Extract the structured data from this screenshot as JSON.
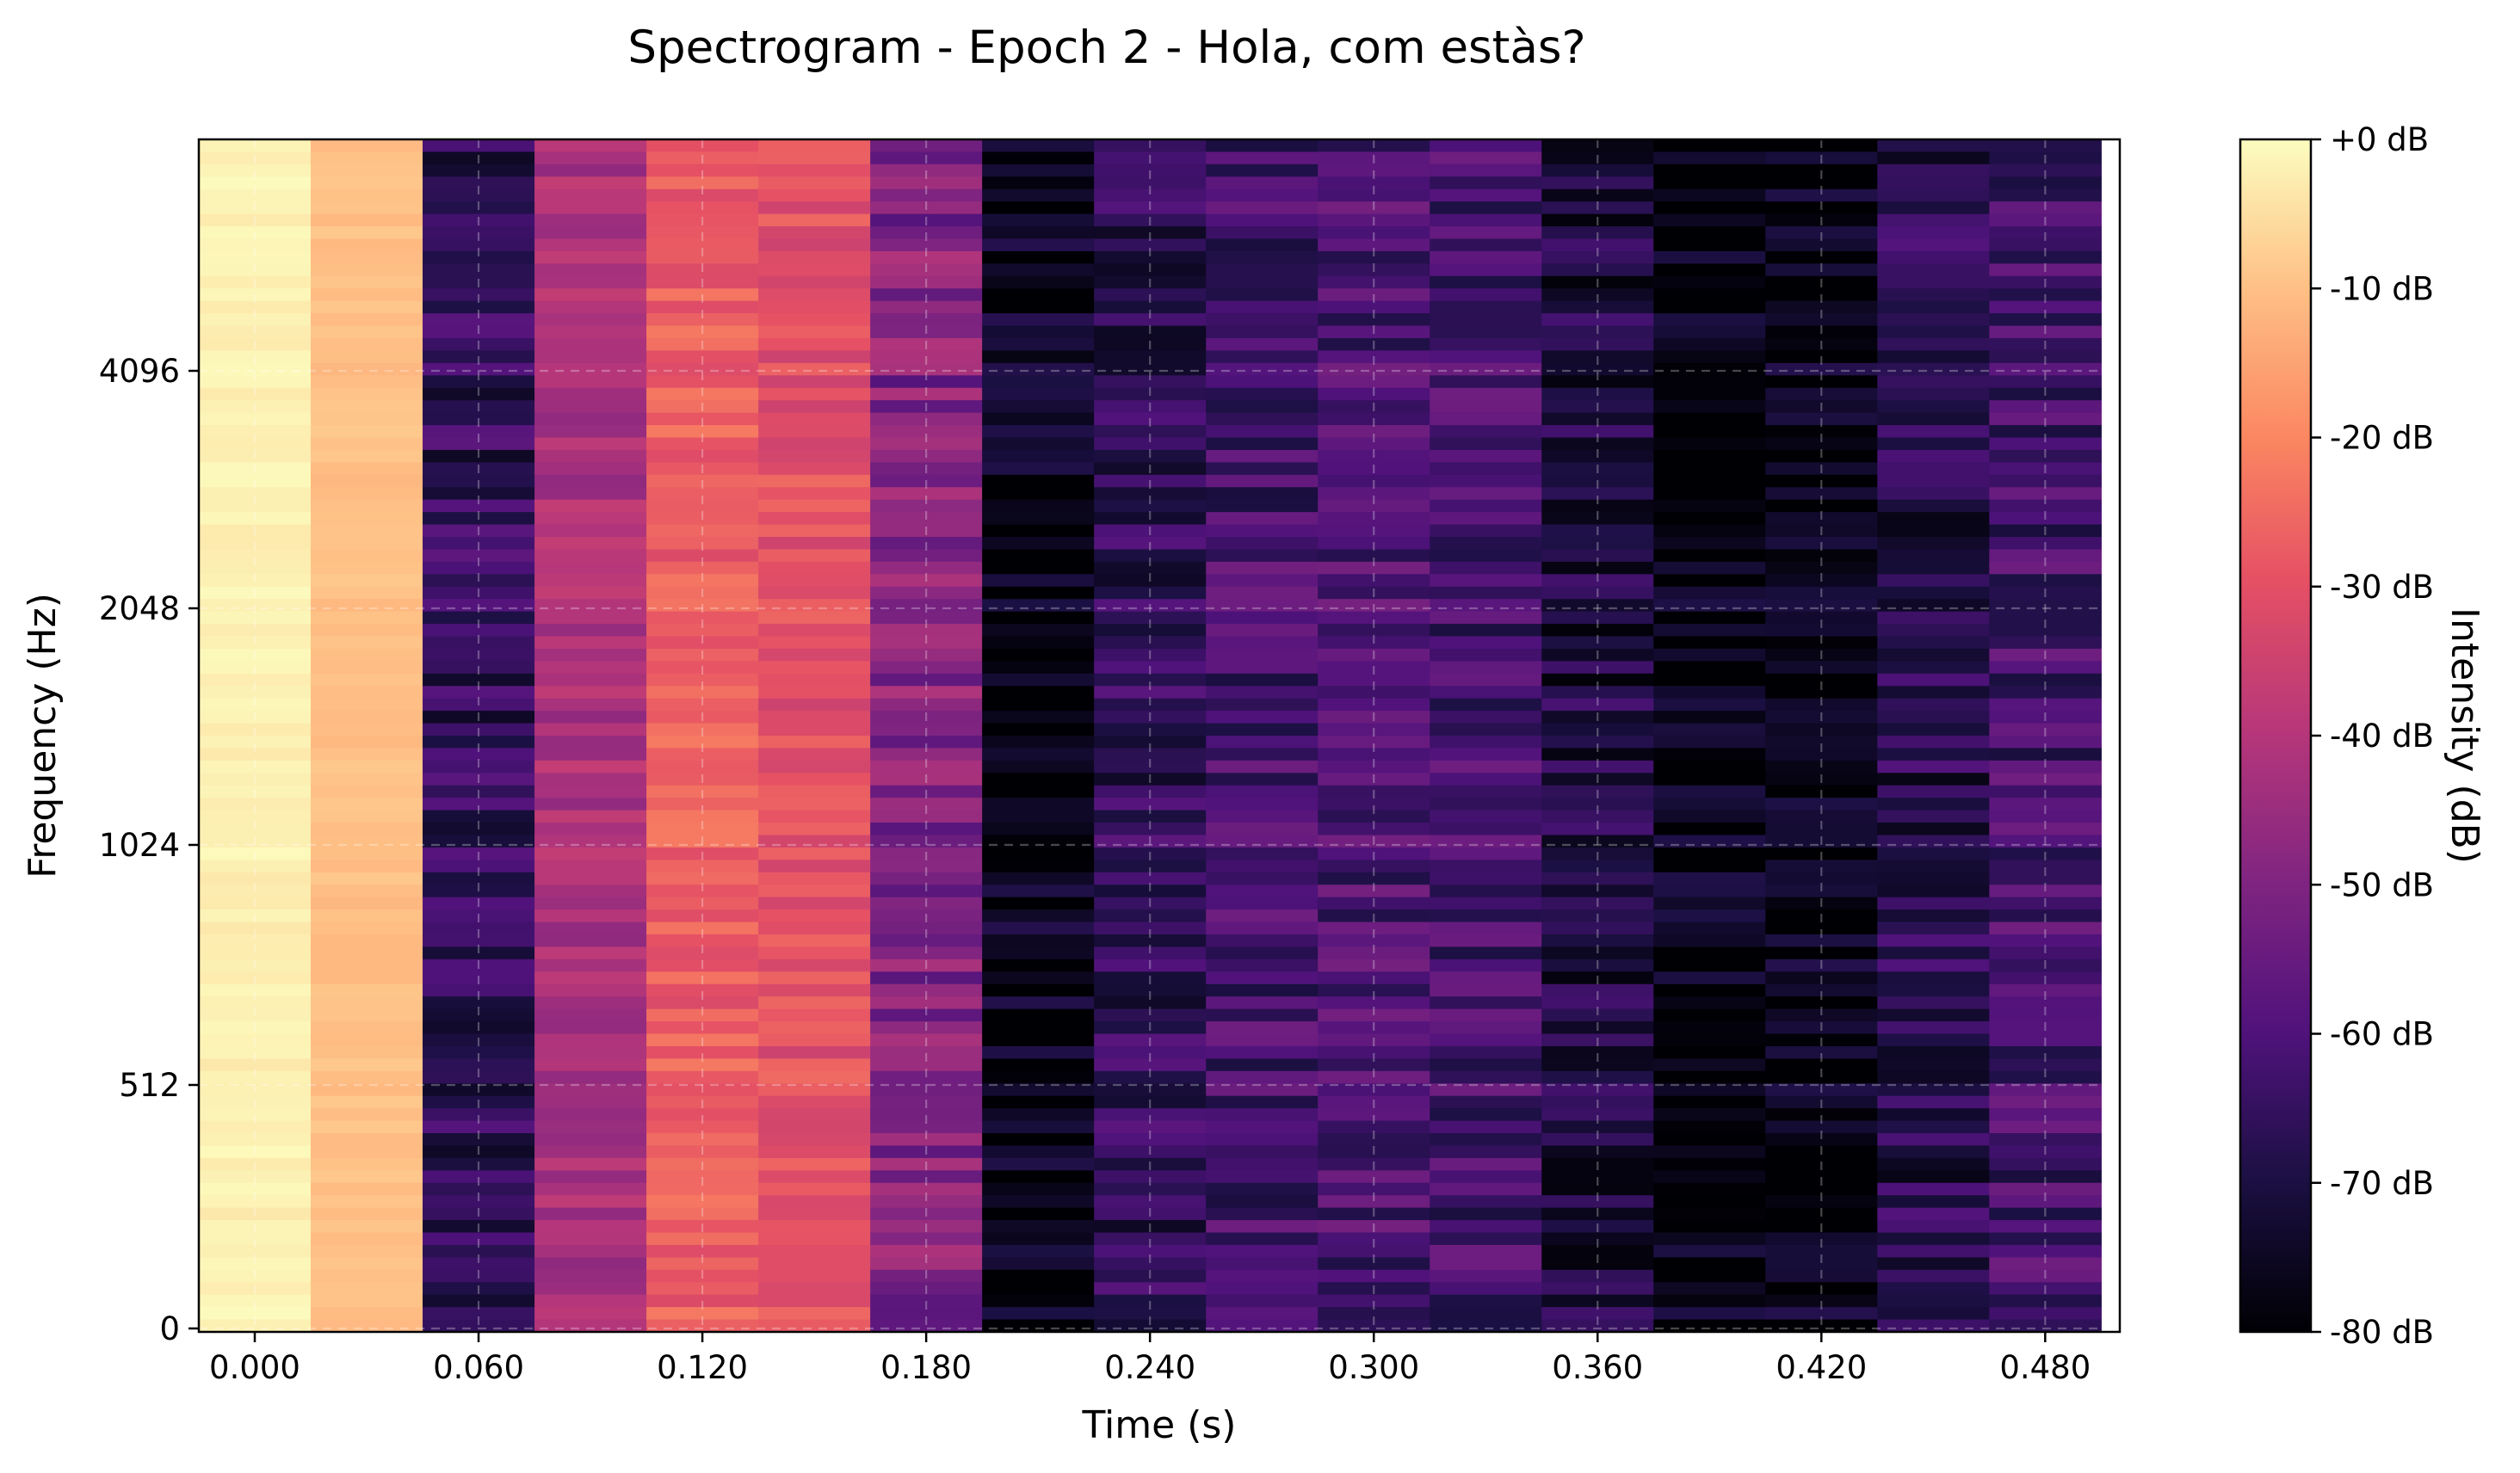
{
  "chart_data": {
    "type": "heatmap",
    "title": "Spectrogram - Epoch 2 - Hola, com estàs?",
    "xlabel": "Time (s)",
    "ylabel": "Frequency (Hz)",
    "xlim": [
      -0.015,
      0.5
    ],
    "y_scale": "symlog-like",
    "grid": true,
    "colormap": "magma",
    "x_ticks": [
      0.0,
      0.06,
      0.12,
      0.18,
      0.24,
      0.3,
      0.36,
      0.42,
      0.48
    ],
    "x_tick_labels": [
      "0.000",
      "0.060",
      "0.120",
      "0.180",
      "0.240",
      "0.300",
      "0.360",
      "0.420",
      "0.480"
    ],
    "y_ticks": [
      0,
      512,
      1024,
      2048,
      4096
    ],
    "y_tick_labels": [
      "0",
      "512",
      "1024",
      "2048",
      "4096"
    ],
    "time_frames": [
      0.0,
      0.03,
      0.06,
      0.09,
      0.12,
      0.15,
      0.18,
      0.21,
      0.24,
      0.27,
      0.3,
      0.33,
      0.36,
      0.39,
      0.42,
      0.45,
      0.48
    ],
    "frame_mean_db": [
      -2,
      -10,
      -66,
      -42,
      -27,
      -30,
      -50,
      -76,
      -66,
      -62,
      -60,
      -62,
      -70,
      -78,
      -77,
      -68,
      -62
    ],
    "colorbar": {
      "label": "Intensity (dB)",
      "range": [
        -80,
        0
      ],
      "ticks": [
        0,
        -10,
        -20,
        -30,
        -40,
        -50,
        -60,
        -70,
        -80
      ],
      "tick_labels": [
        "+0 dB",
        "-10 dB",
        "-20 dB",
        "-30 dB",
        "-40 dB",
        "-50 dB",
        "-60 dB",
        "-70 dB",
        "-80 dB"
      ]
    }
  }
}
